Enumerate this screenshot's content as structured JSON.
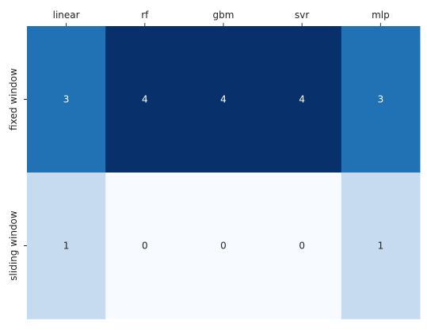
{
  "chart_data": {
    "type": "heatmap",
    "title": "",
    "xlabel": "",
    "ylabel": "",
    "x_categories": [
      "linear",
      "rf",
      "gbm",
      "svr",
      "mlp"
    ],
    "y_categories": [
      "fixed window",
      "sliding window"
    ],
    "values": [
      [
        3,
        4,
        4,
        4,
        3
      ],
      [
        1,
        0,
        0,
        0,
        1
      ]
    ],
    "value_range": [
      0,
      4
    ],
    "colormap": "Blues",
    "colorbar": false,
    "annotations": true,
    "x_ticks_position": "top",
    "grid": false,
    "colors": {
      "0": "#f7fbff",
      "1": "#c6dbef",
      "3": "#2171b5",
      "4": "#08306b",
      "dark_text": "#262626",
      "light_text": "#ffffff"
    }
  }
}
